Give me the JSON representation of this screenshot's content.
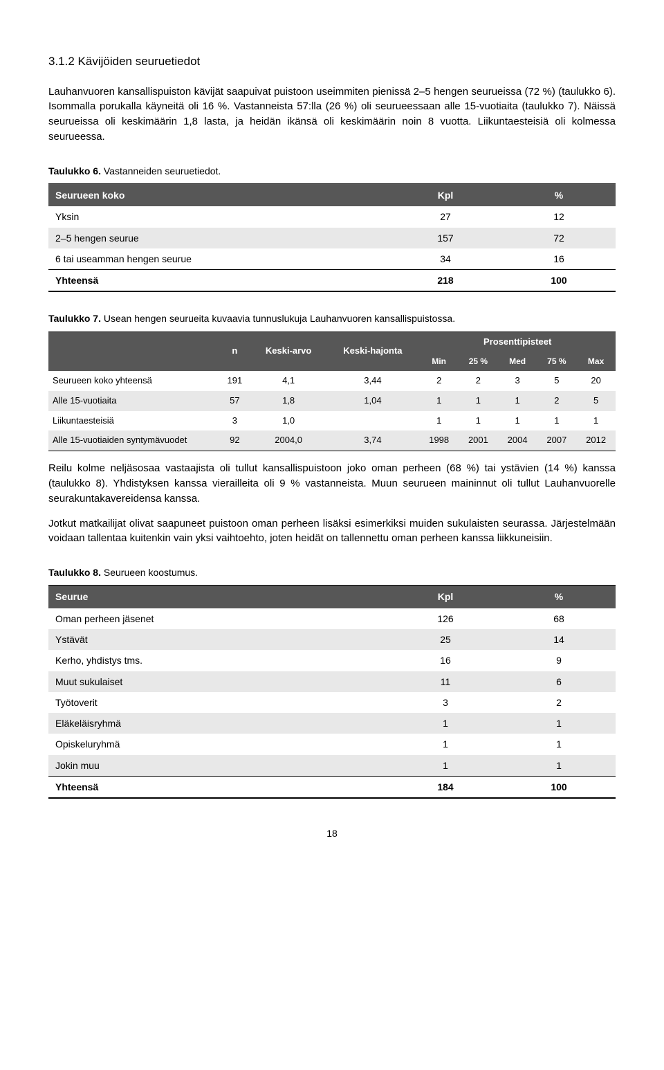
{
  "heading": "3.1.2 Kävijöiden seuruetiedot",
  "p1": "Lauhanvuoren kansallispuiston kävijät saapuivat puistoon useimmiten pienissä 2–5 hengen seurueissa (72 %) (taulukko 6). Isommalla porukalla käyneitä oli 16 %. Vastanneista 57:lla (26 %) oli seurueessaan alle 15-vuotiaita (taulukko 7). Näissä seurueissa oli keskimäärin 1,8 lasta, ja heidän ikänsä oli keskimäärin noin 8 vuotta. Liikuntaesteisiä oli kolmessa seurueessa.",
  "t6": {
    "caption_bold": "Taulukko 6.",
    "caption": " Vastanneiden seuruetiedot.",
    "headers": [
      "Seurueen koko",
      "Kpl",
      "%"
    ],
    "rows": [
      {
        "label": "Yksin",
        "kpl": "27",
        "pct": "12",
        "alt": false
      },
      {
        "label": "2–5 hengen seurue",
        "kpl": "157",
        "pct": "72",
        "alt": true
      },
      {
        "label": "6 tai useamman hengen seurue",
        "kpl": "34",
        "pct": "16",
        "alt": false
      }
    ],
    "total": {
      "label": "Yhteensä",
      "kpl": "218",
      "pct": "100"
    }
  },
  "t7": {
    "caption_bold": "Taulukko 7.",
    "caption": " Usean hengen seurueita kuvaavia tunnuslukuja Lauhanvuoren kansallispuistossa.",
    "headers_top": [
      "",
      "n",
      "Keski-arvo",
      "Keski-hajonta",
      "Prosenttipisteet"
    ],
    "headers_sub": [
      "Min",
      "25 %",
      "Med",
      "75 %",
      "Max"
    ],
    "rows": [
      {
        "label": "Seurueen koko yhteensä",
        "n": "191",
        "ka": "4,1",
        "kh": "3,44",
        "min": "2",
        "p25": "2",
        "med": "3",
        "p75": "5",
        "max": "20",
        "alt": false
      },
      {
        "label": "Alle 15-vuotiaita",
        "n": "57",
        "ka": "1,8",
        "kh": "1,04",
        "min": "1",
        "p25": "1",
        "med": "1",
        "p75": "2",
        "max": "5",
        "alt": true
      },
      {
        "label": "Liikuntaesteisiä",
        "n": "3",
        "ka": "1,0",
        "kh": "",
        "min": "1",
        "p25": "1",
        "med": "1",
        "p75": "1",
        "max": "1",
        "alt": false
      },
      {
        "label": "Alle 15-vuotiaiden syntymävuodet",
        "n": "92",
        "ka": "2004,0",
        "kh": "3,74",
        "min": "1998",
        "p25": "2001",
        "med": "2004",
        "p75": "2007",
        "max": "2012",
        "alt": true
      }
    ]
  },
  "p2": "Reilu kolme neljäsosaa vastaajista oli tullut kansallispuistoon joko oman perheen (68 %) tai ystävien (14 %) kanssa (taulukko 8). Yhdistyksen kanssa vierailleita oli 9 % vastanneista. Muun seurueen maininnut oli tullut Lauhanvuorelle seurakuntakavereidensa kanssa.",
  "p3": "Jotkut matkailijat olivat saapuneet puistoon oman perheen lisäksi esimerkiksi muiden sukulaisten seurassa. Järjestelmään voidaan tallentaa kuitenkin vain yksi vaihtoehto, joten heidät on tallennettu oman perheen kanssa liikkuneisiin.",
  "t8": {
    "caption_bold": "Taulukko 8.",
    "caption": " Seurueen koostumus.",
    "headers": [
      "Seurue",
      "Kpl",
      "%"
    ],
    "rows": [
      {
        "label": "Oman perheen jäsenet",
        "kpl": "126",
        "pct": "68",
        "alt": false
      },
      {
        "label": "Ystävät",
        "kpl": "25",
        "pct": "14",
        "alt": true
      },
      {
        "label": "Kerho, yhdistys tms.",
        "kpl": "16",
        "pct": "9",
        "alt": false
      },
      {
        "label": "Muut sukulaiset",
        "kpl": "11",
        "pct": "6",
        "alt": true
      },
      {
        "label": "Työtoverit",
        "kpl": "3",
        "pct": "2",
        "alt": false
      },
      {
        "label": "Eläkeläisryhmä",
        "kpl": "1",
        "pct": "1",
        "alt": true
      },
      {
        "label": "Opiskeluryhmä",
        "kpl": "1",
        "pct": "1",
        "alt": false
      },
      {
        "label": "Jokin muu",
        "kpl": "1",
        "pct": "1",
        "alt": true
      }
    ],
    "total": {
      "label": "Yhteensä",
      "kpl": "184",
      "pct": "100"
    }
  },
  "page_number": "18"
}
